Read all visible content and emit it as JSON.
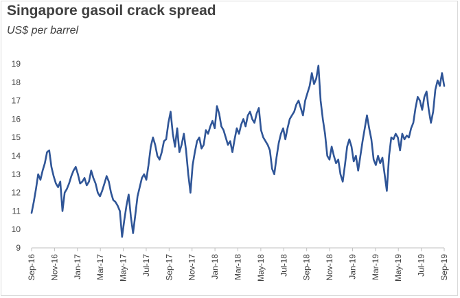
{
  "chart_data": {
    "type": "line",
    "title": "Singapore gasoil crack spread",
    "subtitle": "US$ per barrel",
    "xlabel": "",
    "ylabel": "",
    "ylim": [
      9,
      19
    ],
    "yticks": [
      9,
      10,
      11,
      12,
      13,
      14,
      15,
      16,
      17,
      18,
      19
    ],
    "x_tick_labels": [
      "Sep-16",
      "Nov-16",
      "Jan-17",
      "Mar-17",
      "May-17",
      "Jul-17",
      "Sep-17",
      "Nov-17",
      "Jan-18",
      "Mar-18",
      "May-18",
      "Jul-18",
      "Sep-18",
      "Nov-18",
      "Jan-19",
      "Mar-19",
      "May-19",
      "Jul-19",
      "Sep-19"
    ],
    "grid": "none",
    "legend": "none",
    "series": [
      {
        "color": "#2f5597",
        "values": [
          10.9,
          11.5,
          12.2,
          13.0,
          12.7,
          13.2,
          13.6,
          14.2,
          14.3,
          13.4,
          12.9,
          12.5,
          12.3,
          12.6,
          11.0,
          12.0,
          12.2,
          12.5,
          12.9,
          13.2,
          13.4,
          13.0,
          12.5,
          12.6,
          12.8,
          12.4,
          12.6,
          13.2,
          12.8,
          12.5,
          12.0,
          11.8,
          12.1,
          12.5,
          12.9,
          12.6,
          12.0,
          11.6,
          11.5,
          11.3,
          11.0,
          9.6,
          10.5,
          11.3,
          11.9,
          10.7,
          9.8,
          10.8,
          11.8,
          12.3,
          12.8,
          13.0,
          12.7,
          13.5,
          14.5,
          15.0,
          14.6,
          14.0,
          13.8,
          14.2,
          14.8,
          14.9,
          15.8,
          16.4,
          15.2,
          14.5,
          15.5,
          14.2,
          14.6,
          15.2,
          14.3,
          13.0,
          12.0,
          13.5,
          14.2,
          14.8,
          15.0,
          14.4,
          14.6,
          15.4,
          15.2,
          15.6,
          15.9,
          15.5,
          16.7,
          16.3,
          15.6,
          15.4,
          15.0,
          14.6,
          14.8,
          14.2,
          14.9,
          15.5,
          15.2,
          15.7,
          16.0,
          15.6,
          16.2,
          16.4,
          16.0,
          15.8,
          16.3,
          16.6,
          15.4,
          15.0,
          14.8,
          14.6,
          14.3,
          13.3,
          13.0,
          13.9,
          14.7,
          15.2,
          15.5,
          14.9,
          15.5,
          16.0,
          16.2,
          16.4,
          16.8,
          17.0,
          16.6,
          16.2,
          17.0,
          17.4,
          17.8,
          18.5,
          17.9,
          18.2,
          18.9,
          17.0,
          16.0,
          15.2,
          14.0,
          13.8,
          14.5,
          14.0,
          13.6,
          13.8,
          13.0,
          12.6,
          13.5,
          14.5,
          14.9,
          14.5,
          13.7,
          14.0,
          13.2,
          14.0,
          14.8,
          15.5,
          16.2,
          15.5,
          14.9,
          13.8,
          13.5,
          14.0,
          13.6,
          13.9,
          13.0,
          12.1,
          14.0,
          15.0,
          14.9,
          15.2,
          15.0,
          14.3,
          15.2,
          14.9,
          15.1,
          15.0,
          15.5,
          15.8,
          16.6,
          17.2,
          17.0,
          16.5,
          17.2,
          17.5,
          16.5,
          15.8,
          16.4,
          17.6,
          18.1,
          17.8,
          18.5,
          17.8
        ]
      }
    ]
  }
}
